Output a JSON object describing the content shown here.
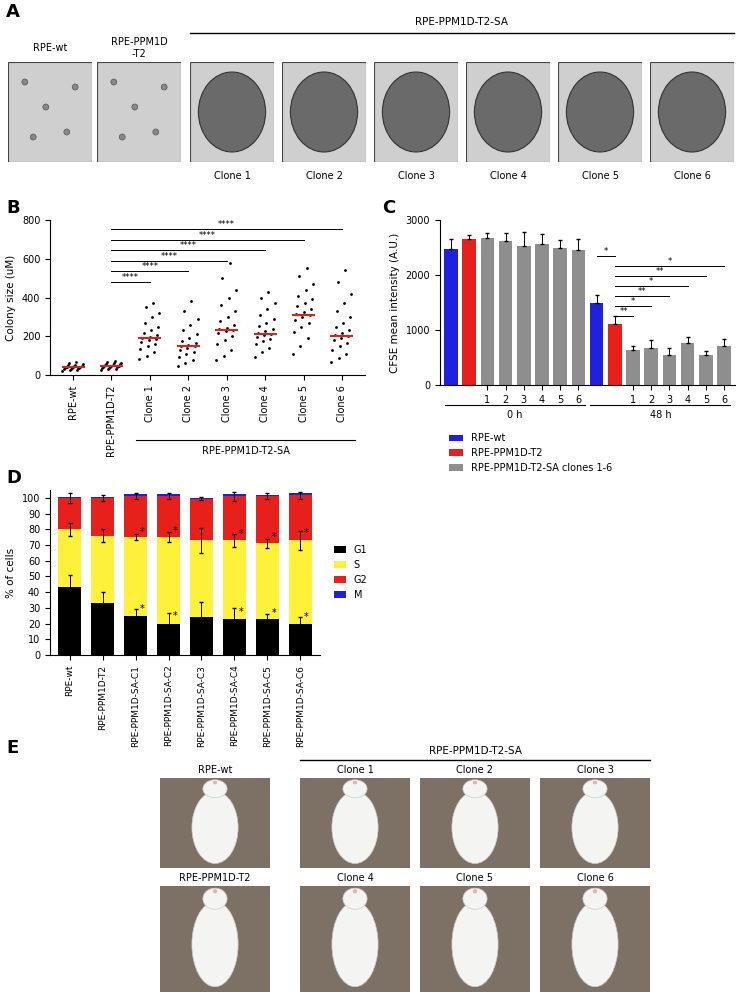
{
  "panel_A": {
    "letter": "A",
    "top_labels": [
      "RPE-wt",
      "RPE-PPM1D\n-T2"
    ],
    "group_label": "RPE-PPM1D-T2-SA",
    "clone_labels": [
      "Clone 1",
      "Clone 2",
      "Clone 3",
      "Clone 4",
      "Clone 5",
      "Clone 6"
    ]
  },
  "chart_data": [
    {
      "panel": "B",
      "type": "scatter",
      "y_label": "Colony size (uM)",
      "categories": [
        "RPE-wt",
        "RPE-PPM1D-T2",
        "Clone 1",
        "Clone 2",
        "Clone 3",
        "Clone 4",
        "Clone 5",
        "Clone 6"
      ],
      "color": "#000000",
      "values": [
        [
          22,
          25,
          28,
          30,
          32,
          34,
          35,
          37,
          38,
          40,
          40,
          42,
          43,
          45,
          47,
          50,
          52,
          55,
          60,
          65
        ],
        [
          26,
          30,
          33,
          35,
          37,
          40,
          42,
          43,
          45,
          45,
          47,
          48,
          50,
          52,
          55,
          57,
          60,
          63,
          67,
          72
        ],
        [
          85,
          100,
          120,
          135,
          150,
          160,
          170,
          180,
          185,
          190,
          195,
          205,
          215,
          230,
          250,
          270,
          300,
          320,
          350,
          370
        ],
        [
          45,
          60,
          80,
          95,
          110,
          120,
          130,
          140,
          148,
          150,
          155,
          165,
          175,
          190,
          210,
          230,
          260,
          290,
          330,
          380
        ],
        [
          75,
          100,
          130,
          160,
          180,
          200,
          215,
          225,
          230,
          235,
          245,
          260,
          280,
          300,
          330,
          360,
          400,
          440,
          500,
          580
        ],
        [
          95,
          120,
          140,
          160,
          175,
          185,
          195,
          205,
          210,
          215,
          225,
          240,
          255,
          270,
          290,
          310,
          340,
          370,
          400,
          430
        ],
        [
          110,
          150,
          190,
          220,
          250,
          270,
          285,
          300,
          310,
          315,
          325,
          340,
          355,
          370,
          390,
          410,
          440,
          470,
          510,
          550
        ],
        [
          65,
          90,
          110,
          130,
          150,
          165,
          180,
          190,
          200,
          205,
          215,
          230,
          250,
          270,
          300,
          330,
          370,
          420,
          480,
          540
        ]
      ],
      "medians": {
        "color": "#e0201b",
        "values": [
          40,
          45,
          190,
          150,
          230,
          210,
          310,
          200
        ]
      },
      "ylim": [
        0,
        800
      ],
      "yticks": [
        0,
        200,
        400,
        600,
        800
      ],
      "groups": [
        {
          "label": "RPE-PPM1D-T2-SA",
          "first": 2,
          "last": 7
        }
      ],
      "comparisons": [
        {
          "from": 1,
          "to": 2,
          "label": "****"
        },
        {
          "from": 1,
          "to": 3,
          "label": "****"
        },
        {
          "from": 1,
          "to": 4,
          "label": "****"
        },
        {
          "from": 1,
          "to": 5,
          "label": "****"
        },
        {
          "from": 1,
          "to": 6,
          "label": "****"
        },
        {
          "from": 1,
          "to": 7,
          "label": "****"
        }
      ]
    },
    {
      "panel": "C",
      "type": "bar",
      "y_label": "CFSE mean intensity (A.U.)",
      "categories": [
        null,
        null,
        "1",
        "2",
        "3",
        "4",
        "5",
        "6",
        null,
        null,
        "1",
        "2",
        "3",
        "4",
        "5",
        "6"
      ],
      "values": [
        2470,
        2650,
        2680,
        2610,
        2530,
        2570,
        2490,
        2460,
        1490,
        1110,
        640,
        680,
        550,
        760,
        540,
        700
      ],
      "errors": [
        180,
        80,
        80,
        150,
        250,
        180,
        150,
        200,
        150,
        150,
        60,
        130,
        120,
        120,
        70,
        130
      ],
      "colors": [
        "#2020e0",
        "#e8201c",
        "#8e8e8e",
        "#8e8e8e",
        "#8e8e8e",
        "#8e8e8e",
        "#8e8e8e",
        "#8e8e8e",
        "#2020e0",
        "#e8201c",
        "#8e8e8e",
        "#8e8e8e",
        "#8e8e8e",
        "#8e8e8e",
        "#8e8e8e",
        "#8e8e8e"
      ],
      "ylim": [
        0,
        3000
      ],
      "yticks": [
        0,
        1000,
        2000,
        3000
      ],
      "groups": [
        {
          "label": "0 h",
          "first": 0,
          "last": 7
        },
        {
          "label": "48 h",
          "first": 8,
          "last": 15
        }
      ],
      "comparisons": [
        {
          "from": 9,
          "to": 10,
          "label": "**"
        },
        {
          "from": 9,
          "to": 11,
          "label": "*"
        },
        {
          "from": 9,
          "to": 12,
          "label": "**"
        },
        {
          "from": 9,
          "to": 13,
          "label": "*"
        },
        {
          "from": 9,
          "to": 14,
          "label": "**"
        },
        {
          "from": 9,
          "to": 15,
          "label": "*"
        },
        {
          "from": 8,
          "to": 9,
          "label": "*"
        }
      ],
      "legend_items": [
        {
          "name": "RPE-wt",
          "color": "#2020e0"
        },
        {
          "name": "RPE-PPM1D-T2",
          "color": "#e8201c"
        },
        {
          "name": "RPE-PPM1D-T2-SA clones 1-6",
          "color": "#8e8e8e"
        }
      ]
    },
    {
      "panel": "D",
      "type": "bar",
      "stacked": true,
      "y_label": "% of cells",
      "categories": [
        "RPE-wt",
        "RPE-PPM1D-T2",
        "RPE-PPM1D-SA-C1",
        "RPE-PPM1D-SA-C2",
        "RPE-PPM1D-SA-C3",
        "RPE-PPM1D-SA-C4",
        "RPE-PPM1D-SA-C5",
        "RPE-PPM1D-SA-C6"
      ],
      "series": [
        {
          "name": "G1",
          "color": "#000000",
          "values": [
            43,
            33,
            25,
            20,
            24,
            23,
            23,
            20
          ],
          "errors": [
            8,
            7,
            4,
            7,
            10,
            7,
            3,
            4
          ],
          "significance": [
            null,
            null,
            "*",
            "*",
            null,
            "*",
            "*",
            "*"
          ]
        },
        {
          "name": "S",
          "color": "#fff03a",
          "values": [
            37,
            43,
            50,
            55,
            49,
            50,
            48,
            53
          ],
          "errors": [
            4,
            4,
            2,
            3,
            8,
            4,
            3,
            6
          ],
          "significance": [
            null,
            null,
            "*",
            "*",
            null,
            "*",
            "*",
            "*"
          ]
        },
        {
          "name": "G2",
          "color": "#e8201c",
          "values": [
            20,
            24,
            26,
            26,
            26.5,
            28,
            30,
            28.5
          ],
          "errors": [
            3,
            2,
            2,
            2,
            1,
            3,
            2,
            2
          ]
        },
        {
          "name": "M",
          "color": "#1f1fe0",
          "values": [
            0.5,
            0.5,
            1.5,
            1.5,
            0.5,
            1.5,
            1,
            1.5
          ]
        }
      ],
      "ylim": [
        0,
        105
      ],
      "yticks": [
        0,
        10,
        20,
        30,
        40,
        50,
        60,
        70,
        80,
        90,
        100
      ],
      "legend": "center left"
    }
  ],
  "panel_E": {
    "letter": "E",
    "group_label": "RPE-PPM1D-T2-SA",
    "rows": [
      [
        "RPE-wt",
        "Clone 1",
        "Clone 2",
        "Clone 3"
      ],
      [
        "RPE-PPM1D-T2",
        "Clone 4",
        "Clone 5",
        "Clone 6"
      ]
    ]
  }
}
